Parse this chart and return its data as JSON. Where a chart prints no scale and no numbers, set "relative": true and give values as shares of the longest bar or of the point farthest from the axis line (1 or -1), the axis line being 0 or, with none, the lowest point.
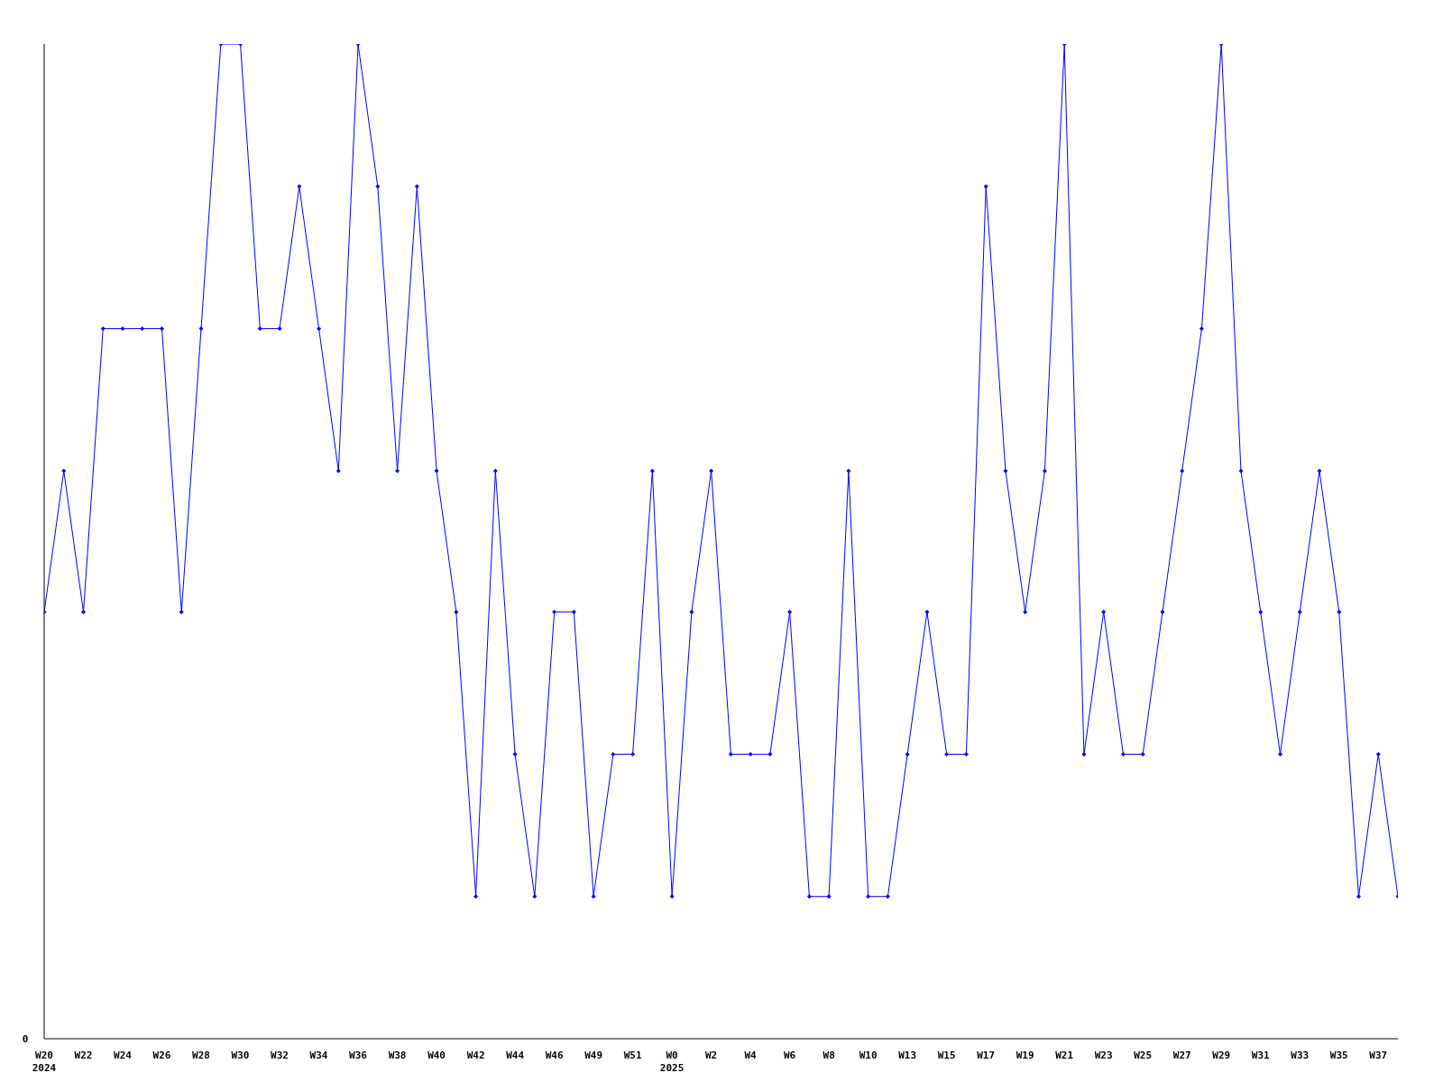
{
  "chart_data": {
    "type": "line",
    "relative": true,
    "marker": "diamond",
    "grid": false,
    "legend": false,
    "annotations": [
      "0"
    ],
    "categories": [
      "W20\n2024",
      null,
      "W22",
      null,
      "W24",
      null,
      "W26",
      null,
      "W28",
      null,
      "W30",
      null,
      "W32",
      null,
      "W34",
      null,
      "W36",
      null,
      "W38",
      null,
      "W40",
      null,
      "W42",
      null,
      "W44",
      null,
      "W46",
      null,
      "W49",
      null,
      "W51",
      null,
      "W0\n2025",
      null,
      "W2",
      null,
      "W4",
      null,
      "W6",
      null,
      "W8",
      null,
      "W10",
      null,
      "W13",
      null,
      "W15",
      null,
      "W17",
      null,
      "W19",
      null,
      "W21",
      null,
      "W23",
      null,
      "W25",
      null,
      "W27",
      null,
      "W29",
      null,
      "W31",
      null,
      "W33",
      null,
      "W35",
      null,
      "W37",
      null
    ],
    "series": [
      {
        "color": "#0000ff",
        "values": [
          0.429,
          0.571,
          0.429,
          0.714,
          0.714,
          0.714,
          0.714,
          0.429,
          0.714,
          1,
          1,
          0.714,
          0.714,
          0.857,
          0.714,
          0.571,
          1,
          0.857,
          0.571,
          0.857,
          0.571,
          0.429,
          0.143,
          0.571,
          0.286,
          0.143,
          0.429,
          0.429,
          0.143,
          0.286,
          0.286,
          0.571,
          0.143,
          0.429,
          0.571,
          0.286,
          0.286,
          0.286,
          0.429,
          0.143,
          0.143,
          0.571,
          0.143,
          0.143,
          0.286,
          0.429,
          0.286,
          0.286,
          0.857,
          0.571,
          0.429,
          0.571,
          1,
          0.286,
          0.429,
          0.286,
          0.286,
          0.429,
          0.571,
          0.714,
          1,
          0.571,
          0.429,
          0.286,
          0.429,
          0.571,
          0.429,
          0.143,
          0.286,
          0.143
        ]
      }
    ]
  }
}
